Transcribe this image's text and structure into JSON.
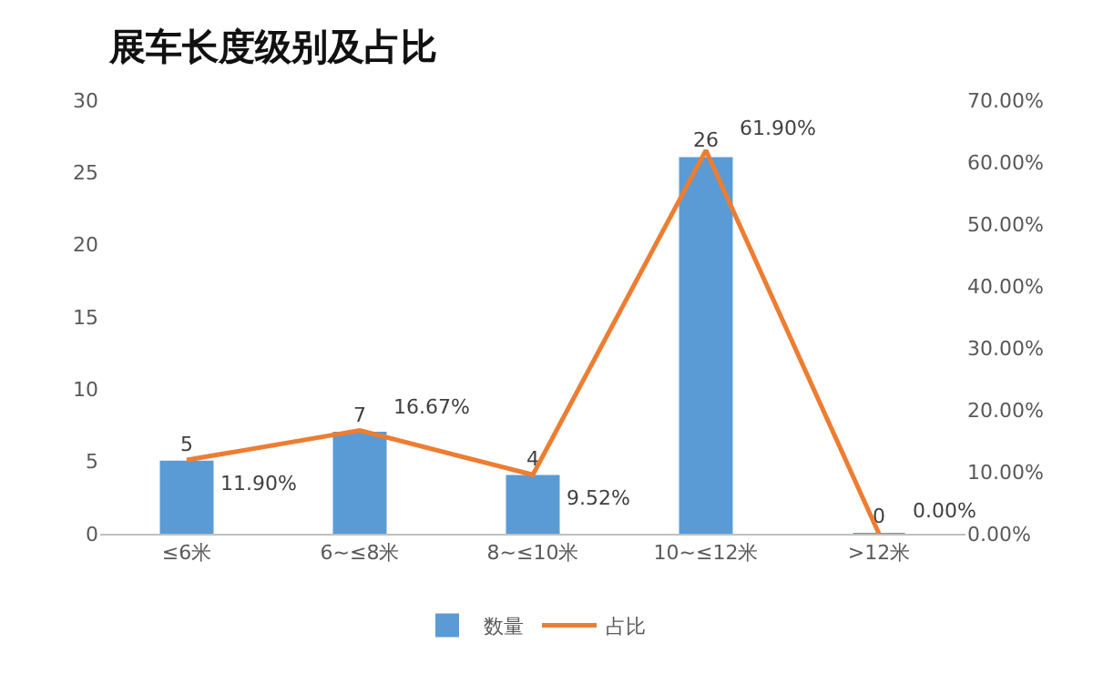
{
  "chart_data": {
    "type": "bar",
    "title": "展车长度级别及占比",
    "categories": [
      "≤6米",
      "6~≤8米",
      "8~≤10米",
      "10~≤12米",
      ">12米"
    ],
    "series": [
      {
        "name": "数量",
        "color": "#5b9bd5",
        "values": [
          5,
          7,
          4,
          26,
          0
        ],
        "value_labels": [
          "5",
          "7",
          "4",
          "26",
          "0"
        ]
      },
      {
        "name": "占比",
        "type": "line",
        "axis": "y2",
        "color": "#ed7d31",
        "marker": "none",
        "values": [
          11.9,
          16.67,
          9.52,
          61.9,
          0.0
        ],
        "value_labels": [
          "11.90%",
          "16.67%",
          "9.52%",
          "61.90%",
          "0.00%"
        ]
      }
    ],
    "ylim": [
      0,
      30
    ],
    "yticks": [
      0,
      5,
      10,
      15,
      20,
      25,
      30
    ],
    "y2lim": [
      0,
      70
    ],
    "y2ticks": [
      {
        "value": 0,
        "label": "0.00%"
      },
      {
        "value": 10,
        "label": "10.00%"
      },
      {
        "value": 20,
        "label": "20.00%"
      },
      {
        "value": 30,
        "label": "30.00%"
      },
      {
        "value": 40,
        "label": "40.00%"
      },
      {
        "value": 50,
        "label": "50.00%"
      },
      {
        "value": 60,
        "label": "60.00%"
      },
      {
        "value": 70,
        "label": "70.00%"
      }
    ],
    "legend": "bottom"
  }
}
